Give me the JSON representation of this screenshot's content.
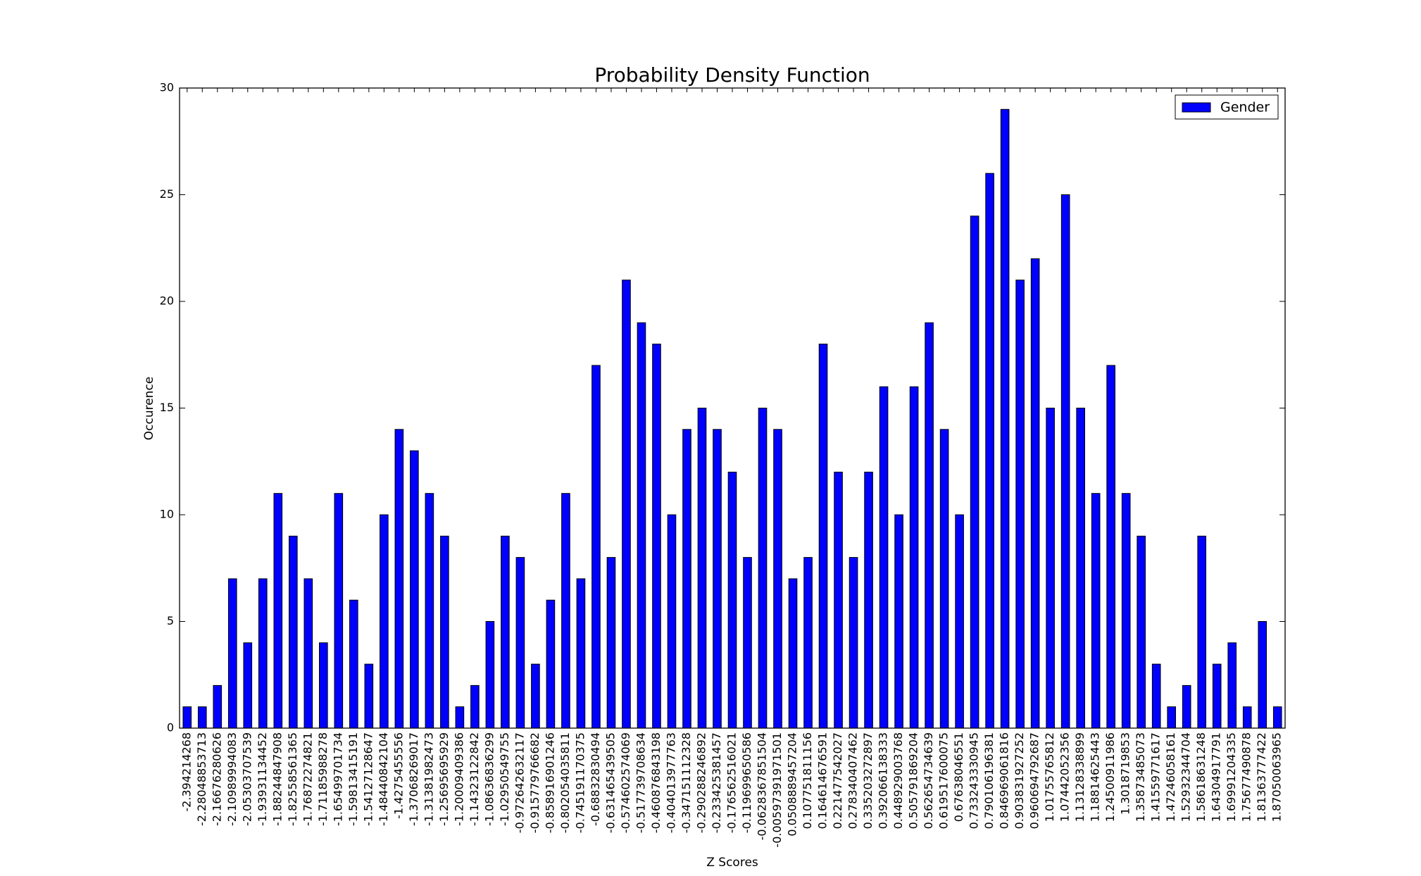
{
  "chart_data": {
    "type": "bar",
    "title": "Probability Density Function",
    "x_label": "Z Scores",
    "y_label": "Occurence",
    "categories": [
      "-2.394214268",
      "-2.28048853713",
      "-2.16676280626",
      "-2.10989994083",
      "-2.05303707539",
      "-1.93931134452",
      "-1.88244847908",
      "-1.82558561365",
      "-1.76872274821",
      "-1.71185988278",
      "-1.65499701734",
      "-1.59813415191",
      "-1.54127128647",
      "-1.48440842104",
      "-1.4275455556",
      "-1.37068269017",
      "-1.31381982473",
      "-1.25695695929",
      "-1.20009409386",
      "-1.14323122842",
      "-1.08636836299",
      "-1.02950549755",
      "-0.972642632117",
      "-0.915779766682",
      "-0.858916901246",
      "-0.802054035811",
      "-0.745191170375",
      "-0.68832830494",
      "-0.631465439505",
      "-0.574602574069",
      "-0.517739708634",
      "-0.460876843198",
      "-0.404013977763",
      "-0.347151112328",
      "-0.290288246892",
      "-0.233425381457",
      "-0.176562516021",
      "-0.119699650586",
      "-0.0628367851504",
      "-0.00597391971501",
      "0.0508889457204",
      "0.107751811156",
      "0.164614676591",
      "0.221477542027",
      "0.278340407462",
      "0.335203272897",
      "0.392066138333",
      "0.448929003768",
      "0.505791869204",
      "0.562654734639",
      "0.619517600075",
      "0.67638046551",
      "0.733243330945",
      "0.790106196381",
      "0.846969061816",
      "0.903831927252",
      "0.960694792687",
      "1.01755765812",
      "1.07442052356",
      "1.13128338899",
      "1.18814625443",
      "1.24500911986",
      "1.3018719853",
      "1.35873485073",
      "1.41559771617",
      "1.47246058161",
      "1.52932344704",
      "1.58618631248",
      "1.64304917791",
      "1.69991204335",
      "1.75677490878",
      "1.81363777422",
      "1.87050063965"
    ],
    "series": [
      {
        "name": "Gender",
        "color": "#0000ff",
        "values": [
          1,
          1,
          2,
          7,
          4,
          7,
          11,
          9,
          7,
          4,
          11,
          6,
          3,
          10,
          14,
          13,
          11,
          9,
          1,
          2,
          5,
          9,
          8,
          3,
          6,
          11,
          7,
          17,
          8,
          21,
          19,
          18,
          10,
          14,
          15,
          14,
          12,
          8,
          15,
          14,
          7,
          8,
          18,
          12,
          8,
          12,
          16,
          10,
          16,
          19,
          14,
          10,
          24,
          26,
          29,
          21,
          22,
          15,
          25,
          15,
          11,
          17,
          11,
          9,
          3,
          1,
          2,
          9,
          3,
          4,
          1,
          5,
          1
        ]
      }
    ],
    "ylim": [
      0,
      30
    ],
    "yticks": [
      0,
      5,
      10,
      15,
      20,
      25,
      30
    ],
    "legend": "upper right"
  }
}
